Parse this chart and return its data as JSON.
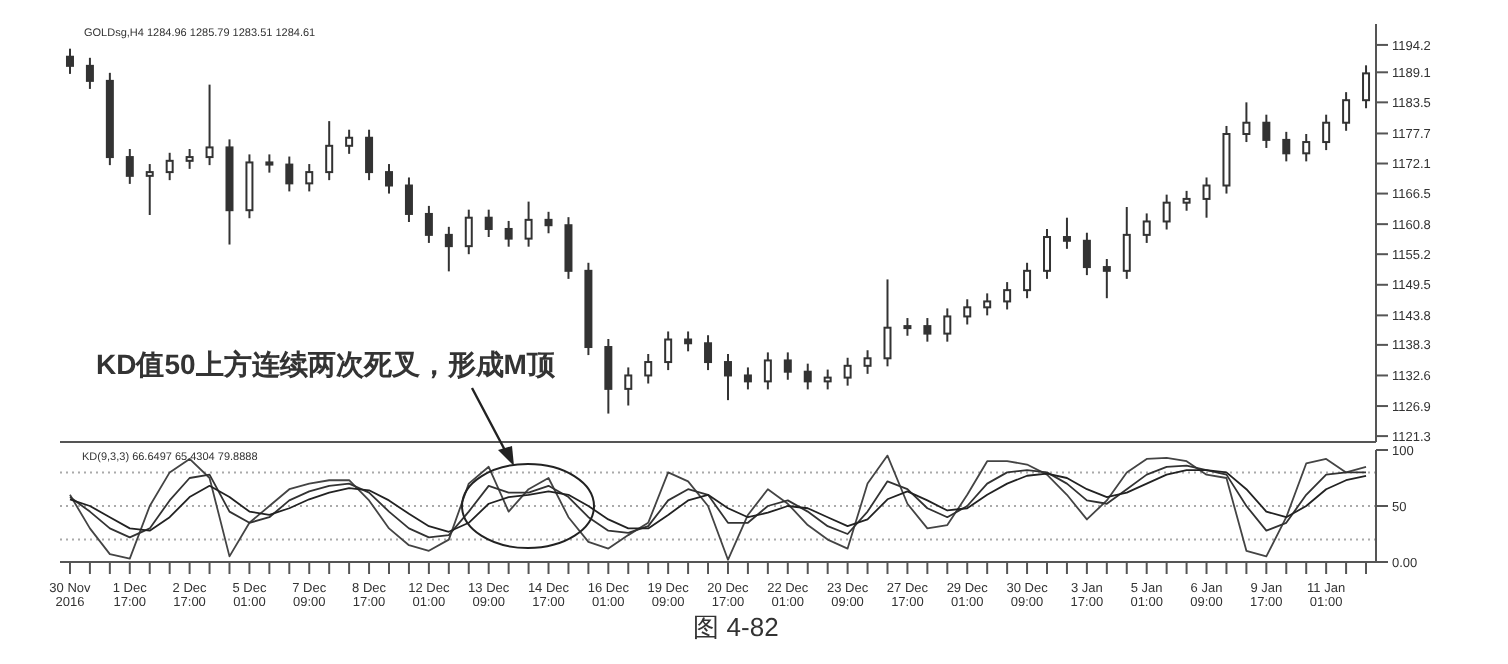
{
  "chart_data": [
    {
      "type": "candlestick",
      "subtitle": "GOLDsg,H4 1284.96 1285.79 1283.51 1284.61",
      "color": "#333333",
      "tick_labels": "y",
      "categories": [
        null,
        null,
        null,
        null,
        null,
        null,
        null,
        null,
        null,
        null,
        null,
        null,
        null,
        null,
        null,
        null,
        null,
        null,
        null,
        null,
        null,
        null,
        null,
        null,
        null,
        null,
        null,
        null,
        null,
        null,
        null,
        null,
        null,
        null,
        null,
        null,
        null,
        null,
        null,
        null,
        null,
        null,
        null,
        null,
        null,
        null,
        null,
        null,
        null,
        null,
        null,
        null,
        null,
        null,
        null,
        null,
        null,
        null,
        null,
        null,
        null,
        null,
        null,
        null,
        null,
        null
      ],
      "ohlc": [
        [
          1192.0,
          1193.5,
          1188.8,
          1190.3
        ],
        [
          1190.3,
          1191.8,
          1186.0,
          1187.5
        ],
        [
          1187.5,
          1189.0,
          1171.8,
          1173.3
        ],
        [
          1173.3,
          1174.8,
          1168.3,
          1169.8
        ],
        [
          1169.8,
          1172.0,
          1162.5,
          1170.5
        ],
        [
          1170.5,
          1174.1,
          1169.0,
          1172.6
        ],
        [
          1172.6,
          1174.8,
          1171.1,
          1173.3
        ],
        [
          1173.3,
          1186.8,
          1171.8,
          1175.1
        ],
        [
          1175.1,
          1176.6,
          1157.0,
          1163.4
        ],
        [
          1163.4,
          1173.8,
          1161.9,
          1172.3
        ],
        [
          1172.3,
          1173.8,
          1170.4,
          1171.9
        ],
        [
          1171.9,
          1173.4,
          1166.9,
          1168.4
        ],
        [
          1168.4,
          1172.0,
          1166.9,
          1170.5
        ],
        [
          1170.5,
          1180.0,
          1169.0,
          1175.4
        ],
        [
          1175.4,
          1178.4,
          1173.9,
          1176.9
        ],
        [
          1176.9,
          1178.4,
          1169.0,
          1170.5
        ],
        [
          1170.5,
          1172.0,
          1166.5,
          1168.0
        ],
        [
          1168.0,
          1169.5,
          1161.2,
          1162.7
        ],
        [
          1162.7,
          1164.2,
          1157.3,
          1158.8
        ],
        [
          1158.8,
          1160.3,
          1152.0,
          1156.7
        ],
        [
          1156.7,
          1163.5,
          1155.2,
          1162.0
        ],
        [
          1162.0,
          1163.5,
          1158.4,
          1159.9
        ],
        [
          1159.9,
          1161.4,
          1156.6,
          1158.1
        ],
        [
          1158.1,
          1165.0,
          1156.6,
          1161.6
        ],
        [
          1161.6,
          1163.1,
          1159.1,
          1160.6
        ],
        [
          1160.6,
          1162.1,
          1150.6,
          1152.1
        ],
        [
          1152.1,
          1153.6,
          1136.4,
          1137.9
        ],
        [
          1137.9,
          1139.4,
          1125.5,
          1130.1
        ],
        [
          1130.1,
          1134.1,
          1127.0,
          1132.6
        ],
        [
          1132.6,
          1136.6,
          1131.1,
          1135.1
        ],
        [
          1135.1,
          1140.8,
          1133.6,
          1139.3
        ],
        [
          1139.3,
          1140.8,
          1137.1,
          1138.6
        ],
        [
          1138.6,
          1140.1,
          1133.6,
          1135.1
        ],
        [
          1135.1,
          1136.6,
          1128.0,
          1132.6
        ],
        [
          1132.6,
          1134.1,
          1130.0,
          1131.5
        ],
        [
          1131.5,
          1136.9,
          1130.0,
          1135.4
        ],
        [
          1135.4,
          1136.9,
          1131.8,
          1133.3
        ],
        [
          1133.3,
          1134.8,
          1130.0,
          1131.5
        ],
        [
          1131.5,
          1133.7,
          1130.0,
          1132.2
        ],
        [
          1132.2,
          1135.9,
          1130.7,
          1134.4
        ],
        [
          1134.4,
          1137.3,
          1132.9,
          1135.8
        ],
        [
          1135.8,
          1150.5,
          1134.3,
          1141.5
        ],
        [
          1141.5,
          1143.3,
          1140.0,
          1141.8
        ],
        [
          1141.8,
          1143.3,
          1138.9,
          1140.4
        ],
        [
          1140.4,
          1145.1,
          1138.9,
          1143.6
        ],
        [
          1143.6,
          1146.8,
          1142.1,
          1145.3
        ],
        [
          1145.3,
          1147.9,
          1143.8,
          1146.4
        ],
        [
          1146.4,
          1150.0,
          1144.9,
          1148.5
        ],
        [
          1148.5,
          1153.6,
          1147.0,
          1152.1
        ],
        [
          1152.1,
          1159.9,
          1150.6,
          1158.4
        ],
        [
          1158.4,
          1162.0,
          1156.2,
          1157.7
        ],
        [
          1157.7,
          1159.2,
          1151.3,
          1152.8
        ],
        [
          1152.8,
          1154.3,
          1147.0,
          1152.1
        ],
        [
          1152.1,
          1164.0,
          1150.6,
          1158.8
        ],
        [
          1158.8,
          1162.8,
          1157.3,
          1161.3
        ],
        [
          1161.3,
          1166.3,
          1159.8,
          1164.8
        ],
        [
          1164.8,
          1167.0,
          1163.3,
          1165.5
        ],
        [
          1165.5,
          1169.5,
          1162.0,
          1168.0
        ],
        [
          1168.0,
          1179.1,
          1166.5,
          1177.6
        ],
        [
          1177.6,
          1183.5,
          1176.1,
          1179.7
        ],
        [
          1179.7,
          1181.2,
          1175.0,
          1176.5
        ],
        [
          1176.5,
          1178.0,
          1172.5,
          1174.0
        ],
        [
          1174.0,
          1177.6,
          1172.5,
          1176.1
        ],
        [
          1176.1,
          1181.2,
          1174.6,
          1179.7
        ],
        [
          1179.7,
          1185.4,
          1178.2,
          1183.9
        ],
        [
          1183.9,
          1190.4,
          1182.4,
          1188.9
        ]
      ],
      "ylim": [
        1120.2,
        1198.1
      ],
      "yticks": [
        1194.2,
        1189.1,
        1183.5,
        1177.7,
        1172.1,
        1166.5,
        1160.8,
        1155.2,
        1149.5,
        1143.8,
        1138.3,
        1132.6,
        1126.9,
        1121.3
      ],
      "annotations": [
        "KD值50上方连续两次死叉，形成M顶"
      ]
    },
    {
      "type": "line",
      "marker": "none",
      "line_style": "solid",
      "categories": [
        "30 Nov 2016",
        null,
        null,
        "1 Dec 17:00",
        null,
        null,
        "2 Dec 17:00",
        null,
        null,
        "5 Dec 01:00",
        null,
        null,
        "7 Dec 09:00",
        null,
        null,
        "8 Dec 17:00",
        null,
        null,
        "12 Dec 01:00",
        null,
        null,
        "13 Dec 09:00",
        null,
        null,
        "14 Dec 17:00",
        null,
        null,
        "16 Dec 01:00",
        null,
        null,
        "19 Dec 09:00",
        null,
        null,
        "20 Dec 17:00",
        null,
        null,
        "22 Dec 01:00",
        null,
        null,
        "23 Dec 09:00",
        null,
        null,
        "27 Dec 17:00",
        null,
        null,
        "29 Dec 01:00",
        null,
        null,
        "30 Dec 09:00",
        null,
        null,
        "3 Jan 17:00",
        null,
        null,
        "5 Jan 01:00",
        null,
        null,
        "6 Jan 09:00",
        null,
        null,
        "9 Jan 17:00",
        null,
        null,
        "11 Jan 01:00",
        null,
        null
      ],
      "series": [
        {
          "color": "#444444",
          "values": [
            60,
            30,
            7,
            3,
            50,
            80,
            92,
            75,
            5,
            35,
            50,
            65,
            70,
            73,
            73,
            55,
            30,
            15,
            10,
            20,
            70,
            85,
            45,
            65,
            75,
            40,
            18,
            12,
            24,
            35,
            80,
            72,
            50,
            2,
            42,
            65,
            52,
            33,
            20,
            12,
            70,
            95,
            52,
            30,
            33,
            60,
            90,
            90,
            87,
            78,
            60,
            38,
            55,
            80,
            92,
            93,
            90,
            78,
            75,
            10,
            5,
            40,
            88,
            92,
            80,
            85
          ]
        },
        {
          "color": "#333333",
          "values": [
            58,
            45,
            30,
            22,
            30,
            55,
            75,
            78,
            45,
            35,
            40,
            55,
            63,
            68,
            70,
            62,
            45,
            30,
            22,
            24,
            45,
            68,
            62,
            62,
            68,
            58,
            40,
            28,
            26,
            32,
            55,
            65,
            60,
            35,
            35,
            50,
            55,
            45,
            32,
            25,
            45,
            72,
            65,
            48,
            40,
            50,
            70,
            80,
            82,
            80,
            70,
            55,
            52,
            65,
            78,
            85,
            86,
            82,
            78,
            50,
            28,
            35,
            60,
            78,
            80,
            80
          ]
        },
        {
          "color": "#222222",
          "values": [
            56,
            50,
            40,
            30,
            28,
            40,
            58,
            68,
            58,
            45,
            42,
            48,
            56,
            62,
            66,
            64,
            55,
            43,
            32,
            27,
            35,
            52,
            58,
            60,
            63,
            60,
            50,
            38,
            30,
            30,
            42,
            55,
            60,
            48,
            40,
            44,
            50,
            48,
            40,
            32,
            38,
            56,
            63,
            55,
            46,
            48,
            60,
            70,
            77,
            79,
            75,
            65,
            58,
            62,
            70,
            78,
            82,
            82,
            80,
            65,
            45,
            40,
            50,
            65,
            73,
            77
          ]
        }
      ],
      "ylim": [
        0,
        100
      ],
      "yticks": [
        {
          "value": 100,
          "label": "100"
        },
        50,
        {
          "value": 0,
          "label": "0.00"
        }
      ],
      "ref_lines": [
        {
          "axis": "y",
          "value": 80,
          "color": "#aaaaaa",
          "line_style": "dotted"
        },
        {
          "axis": "y",
          "value": 50,
          "color": "#aaaaaa",
          "line_style": "dotted"
        },
        {
          "axis": "y",
          "value": 20,
          "color": "#aaaaaa",
          "line_style": "dotted"
        }
      ],
      "annotations": [
        "KD(9,3,3) 66.6497 65.4304 79.8888",
        "图 4-82"
      ]
    }
  ]
}
